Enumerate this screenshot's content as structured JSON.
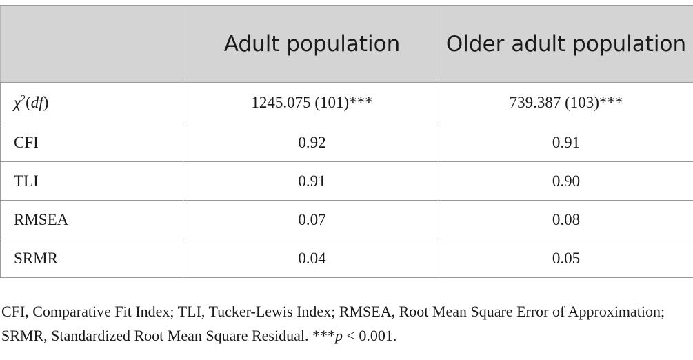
{
  "table": {
    "headers": [
      "",
      "Adult population",
      "Older adult population"
    ],
    "rows": [
      {
        "label_symbol": "χ",
        "label_sup": "2",
        "label_open": "(",
        "label_italic": "df",
        "label_close": ")",
        "adult": "1245.075 (101)***",
        "older": "739.387 (103)***"
      },
      {
        "label": "CFI",
        "adult": "0.92",
        "older": "0.91"
      },
      {
        "label": "TLI",
        "adult": "0.91",
        "older": "0.90"
      },
      {
        "label": "RMSEA",
        "adult": "0.07",
        "older": "0.08"
      },
      {
        "label": "SRMR",
        "adult": "0.04",
        "older": "0.05"
      }
    ]
  },
  "footnote": {
    "text": "CFI, Comparative Fit Index; TLI, Tucker-Lewis Index; RMSEA, Root Mean Square Error of Approximation; SRMR, Standardized Root Mean Square Residual. ***",
    "p_symbol": "p",
    "p_rest": " < 0.001."
  }
}
